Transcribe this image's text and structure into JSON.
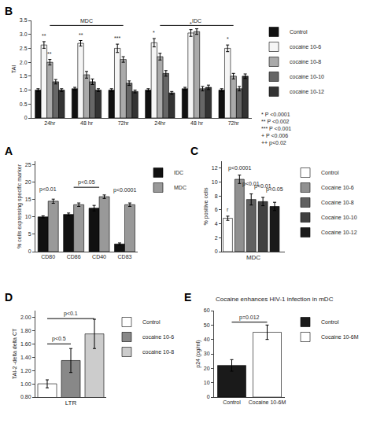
{
  "chart_data": [
    {
      "type": "bar",
      "title": "A",
      "ylabel": "% cells expressing specific marker",
      "categories": [
        "CD80",
        "CD86",
        "CD40",
        "CD83"
      ],
      "series": [
        {
          "name": "IDC",
          "color": "#111111",
          "values": [
            10.0,
            10.7,
            12.5,
            2.2
          ],
          "errors": [
            0.3,
            0.4,
            0.8,
            0.3
          ]
        },
        {
          "name": "MDC",
          "color": "#999999",
          "values": [
            14.5,
            13.5,
            15.8,
            13.5
          ],
          "errors": [
            0.6,
            0.5,
            0.5,
            0.5
          ]
        }
      ],
      "ylim": [
        0,
        26
      ],
      "yticks": [
        0,
        5,
        10,
        15,
        20,
        25
      ],
      "grid": false,
      "legend": "right",
      "annotations": [
        {
          "text": "p<0.01",
          "x": 0,
          "y": 16.5
        },
        {
          "text": "p<0.05",
          "x": [
            1,
            2
          ],
          "y": 18.5
        },
        {
          "text": "p<0.0001",
          "x": 3,
          "y": 16.2
        }
      ]
    },
    {
      "type": "bar",
      "title": "B",
      "ylabel": "TAI",
      "categories": [
        "24hr",
        "48 hr",
        "72hr",
        "24hr",
        "48 hr",
        "72hr"
      ],
      "series": [
        {
          "name": "Control",
          "color": "#111111",
          "values": [
            1.0,
            1.05,
            1.0,
            1.0,
            1.05,
            1.0
          ],
          "errors": [
            0.05,
            0.05,
            0.05,
            0.05,
            0.05,
            0.05
          ]
        },
        {
          "name": "cocaine 10-6",
          "color": "#f5f5f5",
          "values": [
            2.62,
            2.68,
            2.5,
            2.7,
            3.05,
            2.5
          ],
          "errors": [
            0.12,
            0.1,
            0.15,
            0.15,
            0.12,
            0.12
          ]
        },
        {
          "name": "cocaine 10-8",
          "color": "#aaaaaa",
          "values": [
            2.0,
            1.55,
            2.1,
            2.2,
            3.1,
            1.5
          ],
          "errors": [
            0.1,
            0.12,
            0.1,
            0.12,
            0.1,
            0.1
          ]
        },
        {
          "name": "cocaine 10-10",
          "color": "#666666",
          "values": [
            1.3,
            1.3,
            1.25,
            1.6,
            1.05,
            1.05
          ],
          "errors": [
            0.08,
            0.1,
            0.08,
            0.1,
            0.08,
            0.08
          ]
        },
        {
          "name": "cocaine 10-12",
          "color": "#333333",
          "values": [
            1.0,
            1.0,
            0.95,
            0.9,
            1.1,
            1.5
          ],
          "errors": [
            0.05,
            0.05,
            0.05,
            0.05,
            0.08,
            0.08
          ]
        }
      ],
      "ylim": [
        0,
        3.5
      ],
      "yticks": [
        0,
        0.5,
        {
          "value": 1.0,
          "label": "1.0"
        },
        1.5,
        {
          "value": 2.0,
          "label": "2.0"
        },
        2.5,
        {
          "value": 3.0,
          "label": "3.0"
        },
        3.5
      ],
      "grid": false,
      "legend": "right",
      "annotations": [
        {
          "text": "MDC",
          "x": [
            0,
            2
          ],
          "y": 3.32
        },
        {
          "text": "IDC",
          "x": [
            3,
            5
          ],
          "y": 3.32
        },
        {
          "text": "**",
          "x": 0,
          "series": "cocaine 10-6",
          "y": 2.79
        },
        {
          "text": "**",
          "x": 1,
          "series": "cocaine 10-6",
          "y": 2.83
        },
        {
          "text": "***",
          "x": 2,
          "series": "cocaine 10-6",
          "y": 2.7
        },
        {
          "text": "**",
          "x": 0,
          "series": "cocaine 10-8",
          "y": 2.15
        },
        {
          "text": "*",
          "x": 3,
          "series": "cocaine 10-6",
          "y": 2.9
        },
        {
          "text": "*",
          "x": 4,
          "series": "cocaine 10-6",
          "y": 3.22
        },
        {
          "text": "*",
          "x": 5,
          "series": "cocaine 10-6",
          "y": 2.67
        },
        {
          "text": "* P <0.0001"
        },
        {
          "text": "** P <0.002"
        },
        {
          "text": "*** P <0.001"
        },
        {
          "text": "+ P <0.006"
        },
        {
          "text": "++ p<0.02"
        }
      ]
    },
    {
      "type": "bar",
      "title": "C",
      "ylabel": "% positive cells",
      "xlabel": "MDC",
      "categories": [
        null,
        null,
        null,
        null,
        null
      ],
      "tick_labels": "y",
      "series": [
        {
          "name": "Control",
          "color": "#ffffff",
          "values": [
            4.8,
            null,
            null,
            null,
            null
          ],
          "errors": [
            0.3,
            null,
            null,
            null,
            null
          ]
        },
        {
          "name": "Cocaine 10-6",
          "color": "#909090",
          "values": [
            null,
            10.4,
            null,
            null,
            null
          ],
          "errors": [
            null,
            0.6,
            null,
            null,
            null
          ]
        },
        {
          "name": "Cocaine 10-8",
          "color": "#606060",
          "values": [
            null,
            null,
            7.5,
            null,
            null
          ],
          "errors": [
            null,
            null,
            0.8,
            null,
            null
          ]
        },
        {
          "name": "Cocaine 10-10",
          "color": "#404040",
          "values": [
            null,
            null,
            null,
            7.2,
            null
          ],
          "errors": [
            null,
            null,
            null,
            0.6,
            null
          ]
        },
        {
          "name": "Cocaine 10-12",
          "color": "#1a1a1a",
          "values": [
            null,
            null,
            null,
            null,
            6.5
          ],
          "errors": [
            null,
            null,
            null,
            null,
            0.6
          ]
        }
      ],
      "ylim": [
        0,
        13
      ],
      "yticks": [
        0,
        2,
        4,
        6,
        8,
        10,
        12
      ],
      "grid": false,
      "legend": "right",
      "annotations": [
        {
          "text": "p<0.0001",
          "x": 1,
          "y": 11.3
        },
        {
          "text": "p<0.01",
          "x": 2,
          "y": 9.1
        },
        {
          "text": "p<0.01",
          "x": 3,
          "y": 8.7
        },
        {
          "text": "p<0.05",
          "x": 4,
          "y": 8.2
        },
        {
          "text": "r",
          "x": 0,
          "y": 5.4
        }
      ]
    },
    {
      "type": "bar",
      "title": "D",
      "ylabel": "TAI-2 -delta delta CT",
      "xlabel": "LTR",
      "categories": [
        null,
        null,
        null
      ],
      "tick_labels": "y",
      "series": [
        {
          "name": "Control",
          "color": "#ffffff",
          "values": [
            1.0,
            null,
            null
          ],
          "errors": [
            0.06,
            null,
            null
          ]
        },
        {
          "name": "cocaine 10-6",
          "color": "#888888",
          "values": [
            null,
            1.35,
            null
          ],
          "errors": [
            null,
            0.18,
            null
          ]
        },
        {
          "name": "cocaine 10-8",
          "color": "#cccccc",
          "values": [
            null,
            null,
            1.75
          ],
          "errors": [
            null,
            null,
            0.22
          ]
        }
      ],
      "ylim": [
        0.8,
        2.1
      ],
      "yticks": [
        {
          "value": 0.8,
          "label": "0.80"
        },
        {
          "value": 1.0,
          "label": "1.00"
        },
        {
          "value": 1.2,
          "label": "1.20"
        },
        {
          "value": 1.4,
          "label": "1.40"
        },
        {
          "value": 1.6,
          "label": "1.60"
        },
        {
          "value": 1.8,
          "label": "1.80"
        },
        {
          "value": 2.0,
          "label": "2.00"
        }
      ],
      "grid": false,
      "legend": "right",
      "annotations": [
        {
          "text": "p<0.5",
          "x": [
            0,
            1
          ],
          "y": 1.6
        },
        {
          "text": "p<0.1",
          "x": [
            0,
            2
          ],
          "y": 1.98
        }
      ]
    },
    {
      "type": "bar",
      "title": "E",
      "subtitle": "Cocaine enhances HIV-1 infection in mDC",
      "ylabel": "p24 (pg/ml)",
      "categories": [
        "Control",
        "Cocaine 10-6M"
      ],
      "series": [
        {
          "name": "Control",
          "color": "#1a1a1a",
          "values": [
            22.0,
            null
          ],
          "errors": [
            4.0,
            null
          ]
        },
        {
          "name": "Cocaine 10-6M",
          "color": "#ffffff",
          "values": [
            null,
            45.0
          ],
          "errors": [
            null,
            5.0
          ]
        }
      ],
      "ylim": [
        0,
        60
      ],
      "yticks": [
        0,
        10,
        20,
        30,
        40,
        50,
        60
      ],
      "grid": false,
      "legend": "right",
      "annotations": [
        {
          "text": "p=0.012",
          "x": [
            0,
            1
          ],
          "y": 52
        }
      ]
    }
  ]
}
